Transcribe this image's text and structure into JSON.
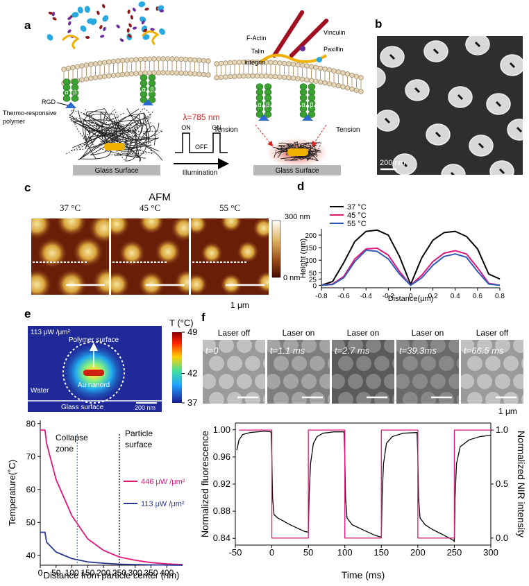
{
  "panel_labels": [
    "a",
    "b",
    "c",
    "d",
    "e",
    "f"
  ],
  "diagram": {
    "left": {
      "rgd": "RGD",
      "polymer": [
        "Thermo-responsive",
        "polymer"
      ],
      "glass": "Glass Surface"
    },
    "illumination": {
      "wavelength": "λ=785 nm",
      "on": "ON",
      "off": "OFF",
      "arrow": "Illumination"
    },
    "right": {
      "f_actin": "F-Actin",
      "talin": "Talin",
      "integrin": "Integrin",
      "vinculin": "Vinculin",
      "paxillin": "Paxillin",
      "tension": "Tension",
      "glass": "Glass Surface"
    },
    "integrin_subunits": [
      "α",
      "β"
    ]
  },
  "tem_image": {
    "scale_bar": "200 nm"
  },
  "afm": {
    "title": "AFM",
    "temperatures": [
      "37 °C",
      "45 °C",
      "55 °C"
    ],
    "colorbar": [
      "300 nm",
      "0 nm"
    ],
    "scale_bar": "1 μm"
  },
  "heat_map": {
    "intensity": "113 μW /μm²",
    "polymer_surface": "Polymer surface",
    "nanorod": "Au nanord",
    "water": "Water",
    "glass": "Glass surface",
    "scale_bar": "200 nm",
    "colorbar_title": "T (°C)",
    "colorbar_ticks": [
      49,
      42,
      37
    ]
  },
  "fluorescence_images": {
    "states": [
      "Laser off",
      "Laser on",
      "Laser on",
      "Laser on",
      "Laser off"
    ],
    "times": [
      "t=0",
      "t=1.1 ms",
      "t=2.7 ms",
      "t=39.3ms",
      "t=66.5 ms"
    ],
    "scale_bar": "1 μm"
  },
  "chart_data": [
    {
      "type": "line",
      "ylabel": "Height (nm)",
      "xlabel": "Distance(μm)",
      "xlim": [
        -0.8,
        0.8
      ],
      "ylim": [
        -10,
        225
      ],
      "xticks": [
        -0.8,
        -0.6,
        -0.4,
        -0.2,
        0,
        0.2,
        0.4,
        0.6,
        0.8
      ],
      "yticks": [
        0,
        25,
        50,
        100,
        150,
        200
      ],
      "legend": "upper left",
      "x": [
        -0.8,
        -0.7,
        -0.6,
        -0.5,
        -0.4,
        -0.3,
        -0.2,
        -0.1,
        0,
        0.1,
        0.2,
        0.3,
        0.4,
        0.5,
        0.6,
        0.7,
        0.8
      ],
      "series": [
        {
          "name": "37 °C",
          "color": "#000000",
          "values": [
            0,
            15,
            90,
            175,
            215,
            220,
            200,
            115,
            3,
            110,
            180,
            210,
            215,
            195,
            145,
            45,
            25
          ]
        },
        {
          "name": "45 °C",
          "color": "#e0177a",
          "values": [
            0,
            5,
            35,
            105,
            145,
            148,
            120,
            55,
            0,
            40,
            95,
            128,
            138,
            125,
            70,
            8,
            0
          ]
        },
        {
          "name": "55 °C",
          "color": "#2f5bb7",
          "values": [
            0,
            3,
            30,
            95,
            140,
            135,
            105,
            45,
            0,
            30,
            80,
            115,
            125,
            112,
            55,
            5,
            0
          ]
        }
      ]
    },
    {
      "type": "line",
      "ylabel": "Temperature(˚C)",
      "xlabel": "Distance from particle center (nm)",
      "xlim": [
        0,
        450
      ],
      "ylim": [
        37,
        81
      ],
      "xticks": [
        0,
        50,
        100,
        150,
        200,
        250,
        300,
        350,
        400
      ],
      "yticks": [
        40,
        50,
        60,
        70,
        80
      ],
      "legend": "center right",
      "reference_lines": [
        {
          "x": 117,
          "color": "#3a8fd0"
        },
        {
          "x": 250,
          "color": "#000000"
        }
      ],
      "annotations": [
        [
          "Collapse",
          "zone"
        ],
        [
          "Particle",
          "surface"
        ]
      ],
      "x": [
        0,
        15,
        20,
        50,
        100,
        150,
        200,
        250,
        300,
        350,
        400,
        450
      ],
      "series": [
        {
          "name": "446 μW /μm²",
          "color": "#e0177a",
          "values": [
            78,
            78,
            74,
            63,
            52,
            45,
            41.5,
            39.5,
            38.5,
            37.8,
            37.4,
            37.2
          ]
        },
        {
          "name": "113 μW /μm²",
          "color": "#2a3a8f",
          "values": [
            47,
            47,
            44,
            41,
            39,
            38,
            37.6,
            37.3,
            37.2,
            37.1,
            37.05,
            37
          ]
        }
      ]
    },
    {
      "type": "line",
      "ylabel": "Normalized fluorescence",
      "y2label": "Normalized NIR intensity",
      "xlabel": "Time (ms)",
      "xlim": [
        -50,
        300
      ],
      "ylim": [
        0.83,
        1.01
      ],
      "y2lim": [
        -0.065,
        1.065
      ],
      "xticks": [
        -50,
        0,
        50,
        100,
        150,
        200,
        250,
        300
      ],
      "yticks": [
        0.84,
        0.88,
        0.92,
        0.96,
        {
          "value": 1,
          "label": "1.00"
        }
      ],
      "y2ticks": [
        {
          "value": 0,
          "label": "0.0"
        },
        0.5,
        {
          "value": 1,
          "label": "1.0"
        }
      ],
      "series": [
        {
          "color": "#000000",
          "x": [
            -48,
            -45,
            -40,
            -30,
            -20,
            -10,
            -1,
            0,
            1,
            3,
            8,
            15,
            25,
            35,
            45,
            50,
            51,
            53,
            57,
            62,
            70,
            85,
            99,
            100,
            101,
            103,
            110,
            120,
            130,
            140,
            149,
            150,
            151,
            153,
            157,
            165,
            180,
            199,
            200,
            201,
            203,
            210,
            220,
            235,
            249,
            250,
            251,
            253,
            258,
            270,
            285,
            300
          ],
          "values": [
            0.97,
            0.985,
            0.993,
            0.996,
            0.997,
            0.998,
            0.997,
            0.96,
            0.9,
            0.875,
            0.87,
            0.866,
            0.86,
            0.855,
            0.85,
            0.849,
            0.9,
            0.95,
            0.98,
            0.99,
            0.995,
            0.997,
            0.997,
            0.96,
            0.9,
            0.87,
            0.86,
            0.855,
            0.85,
            0.845,
            0.842,
            0.842,
            0.9,
            0.95,
            0.98,
            0.99,
            0.995,
            0.996,
            0.96,
            0.9,
            0.87,
            0.86,
            0.853,
            0.845,
            0.837,
            0.835,
            0.9,
            0.95,
            0.975,
            0.985,
            0.99,
            0.992
          ]
        },
        {
          "color": "#e0177a",
          "axis": "y2",
          "x": [
            -45,
            0,
            0,
            50,
            50,
            100,
            100,
            150,
            150,
            200,
            200,
            250,
            250,
            300
          ],
          "values": [
            1,
            1,
            0,
            0,
            1,
            1,
            0,
            0,
            1,
            1,
            0,
            0,
            1,
            1
          ]
        }
      ]
    }
  ]
}
